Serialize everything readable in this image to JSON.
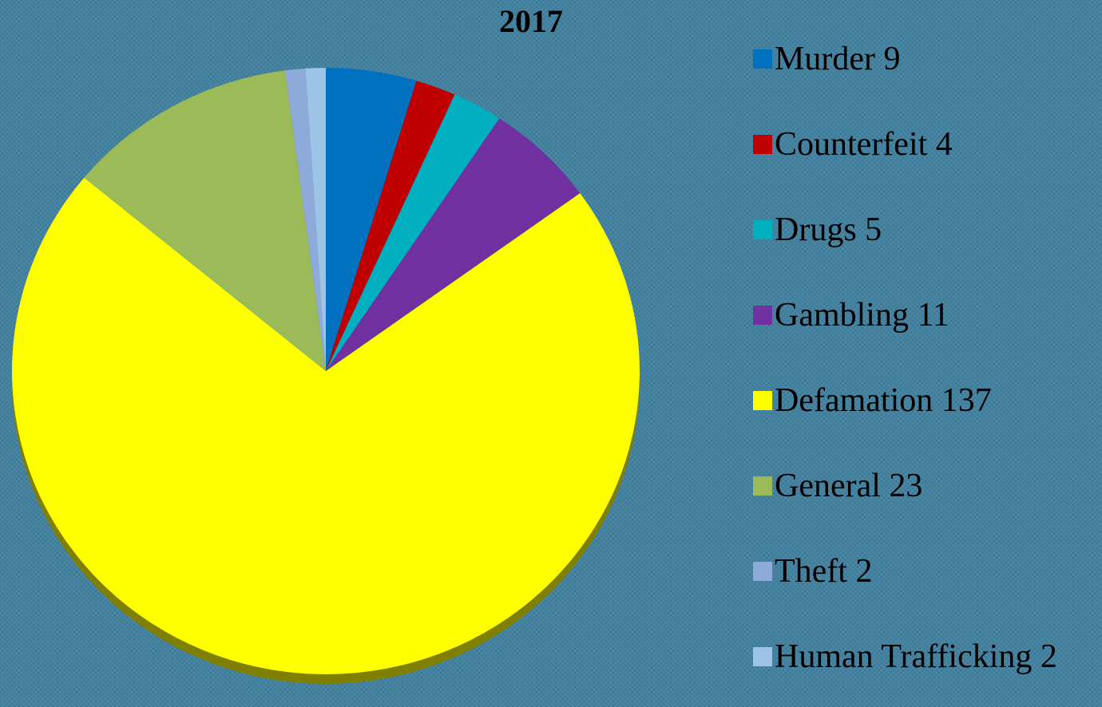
{
  "chart_data": {
    "type": "pie",
    "title": "2017",
    "categories": [
      "Murder",
      "Counterfeit",
      "Drugs",
      "Gambling",
      "Defamation",
      "General",
      "Theft",
      "Human Trafficking"
    ],
    "values": [
      9,
      4,
      5,
      11,
      137,
      23,
      2,
      2
    ],
    "colors": [
      "#0070c0",
      "#c00000",
      "#00b0c0",
      "#7030a0",
      "#ffff00",
      "#9bbb59",
      "#8eaadb",
      "#9dc3e6"
    ],
    "legend": "right"
  }
}
